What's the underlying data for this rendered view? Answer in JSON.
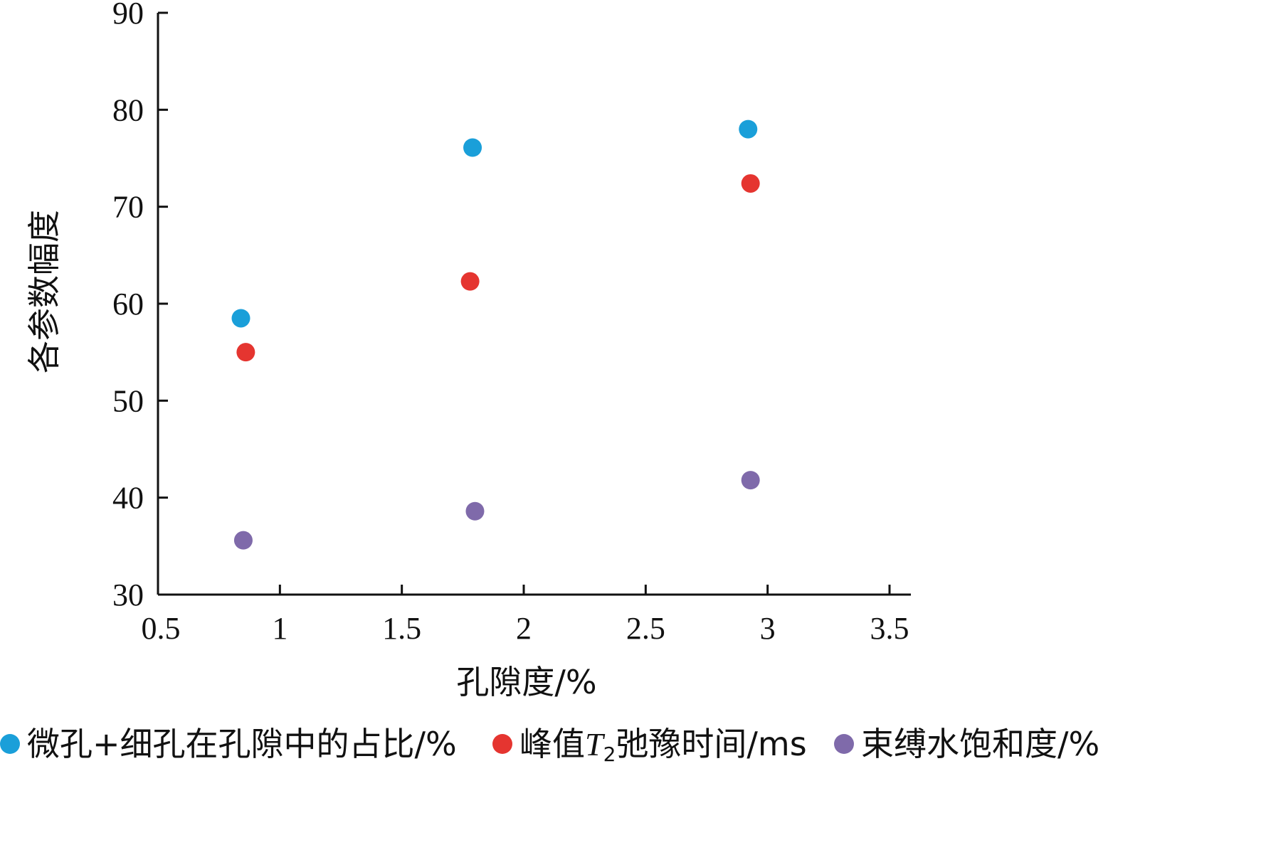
{
  "chart_data": {
    "type": "scatter",
    "xlabel": "孔隙度/%",
    "ylabel": "各参数幅度",
    "xlim": [
      0.5,
      3.5
    ],
    "ylim": [
      30,
      90
    ],
    "xticks": [
      0.5,
      1,
      1.5,
      2,
      2.5,
      3,
      3.5
    ],
    "xtick_labels": [
      "0.5",
      "1",
      "1.5",
      "2",
      "2.5",
      "3",
      "3.5"
    ],
    "yticks": [
      30,
      40,
      50,
      60,
      70,
      80,
      90
    ],
    "ytick_labels": [
      "30",
      "40",
      "50",
      "60",
      "70",
      "80",
      "90"
    ],
    "grid": false,
    "legend_position": "bottom",
    "series": [
      {
        "name": "微孔+细孔在孔隙中的占比/%",
        "color": "#1a9fd9",
        "points": [
          [
            0.84,
            58.5
          ],
          [
            1.79,
            76.1
          ],
          [
            2.92,
            78.0
          ]
        ]
      },
      {
        "name_parts": [
          "峰值",
          "T",
          "2",
          "弛豫时间/ms"
        ],
        "color": "#e53530",
        "points": [
          [
            0.86,
            55.0
          ],
          [
            1.78,
            62.3
          ],
          [
            2.93,
            72.4
          ]
        ]
      },
      {
        "name": "束缚水饱和度/%",
        "color": "#7f6aaa",
        "points": [
          [
            0.85,
            35.6
          ],
          [
            1.8,
            38.6
          ],
          [
            2.93,
            41.8
          ]
        ]
      }
    ]
  }
}
